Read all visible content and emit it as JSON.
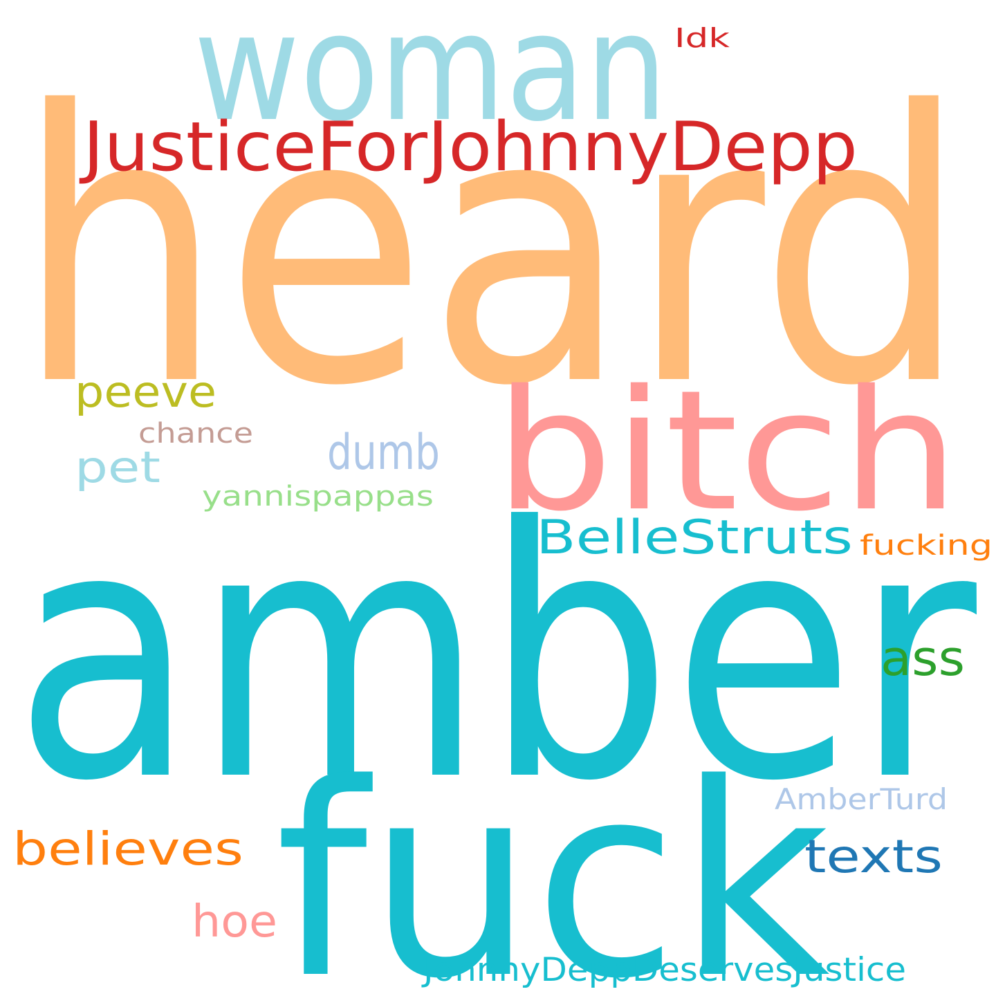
{
  "words": [
    {
      "id": "heard",
      "text": "heard",
      "color": "#ffbb78"
    },
    {
      "id": "amber",
      "text": "amber",
      "color": "#17becf"
    },
    {
      "id": "woman",
      "text": "woman",
      "color": "#9edae5"
    },
    {
      "id": "fuck",
      "text": "fuck",
      "color": "#17becf"
    },
    {
      "id": "bitch",
      "text": "bitch",
      "color": "#ff9896"
    },
    {
      "id": "justicefor",
      "text": "JusticeForJohnnyDepp",
      "color": "#d62728"
    },
    {
      "id": "bellestruts",
      "text": "BelleStruts",
      "color": "#17becf"
    },
    {
      "id": "peeve",
      "text": "peeve",
      "color": "#bcbd22"
    },
    {
      "id": "dumb",
      "text": "dumb",
      "color": "#aec7e8"
    },
    {
      "id": "pet",
      "text": "pet",
      "color": "#9edae5"
    },
    {
      "id": "believes",
      "text": "believes",
      "color": "#ff7f0e"
    },
    {
      "id": "texts",
      "text": "texts",
      "color": "#1f77b4"
    },
    {
      "id": "ass",
      "text": "ass",
      "color": "#2ca02c"
    },
    {
      "id": "hoe",
      "text": "hoe",
      "color": "#ff9896"
    },
    {
      "id": "johnnydeserves",
      "text": "JohnnyDeppDeservesJustice",
      "color": "#17becf"
    },
    {
      "id": "fucking",
      "text": "fucking",
      "color": "#ff7f0e"
    },
    {
      "id": "yannispappas",
      "text": "yannispappas",
      "color": "#98df8a"
    },
    {
      "id": "amberturd",
      "text": "AmberTurd",
      "color": "#aec7e8"
    },
    {
      "id": "chance",
      "text": "chance",
      "color": "#c49c94"
    },
    {
      "id": "idk",
      "text": "Idk",
      "color": "#d62728"
    }
  ]
}
